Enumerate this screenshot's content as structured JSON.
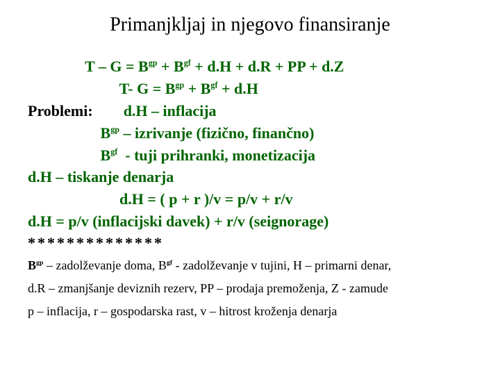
{
  "title": "Primanjkljaj in njegovo finansiranje",
  "colors": {
    "equation": "#006400",
    "text": "#000000",
    "background": "#ffffff"
  },
  "lines": {
    "eq1_pre": "T – G = B",
    "eq1_sup1": "gp",
    "eq1_mid1": " + B",
    "eq1_sup2": "gf",
    "eq1_post": " + d.H + d.R + PP + d.Z",
    "eq2_pre": "T- G = B",
    "eq2_sup1": "gp",
    "eq2_mid1": " + B",
    "eq2_sup2": "gf",
    "eq2_post": " + d.H",
    "problemi_label": "Problemi:",
    "p1": "d.H – inflacija",
    "p2_pre": "B",
    "p2_sup": "gp",
    "p2_post": " – izrivanje (fizično, finančno)",
    "p3_pre": "B",
    "p3_sup": "gf",
    "p3_post": "  - tuji prihranki, monetizacija",
    "dh_line": "d.H – tiskanje denarja",
    "dh_eq": "d.H = ( p + r )/v = p/v + r/v",
    "dh_final": "d.H = p/v (inflacijski davek) + r/v (seignorage)"
  },
  "stars": "**************",
  "legend": {
    "l1_b1": "B",
    "l1_sup1": "gp",
    "l1_t1": " – zadolževanje doma, B",
    "l1_sup2": "gf",
    "l1_t2": " - zadolževanje v tujini, H – primarni denar,",
    "l2": "d.R – zmanjšanje deviznih rezerv,  PP – prodaja premoženja,  Z - zamude",
    "l3": "p – inflacija, r – gospodarska rast, v – hitrost kroženja denarja"
  }
}
